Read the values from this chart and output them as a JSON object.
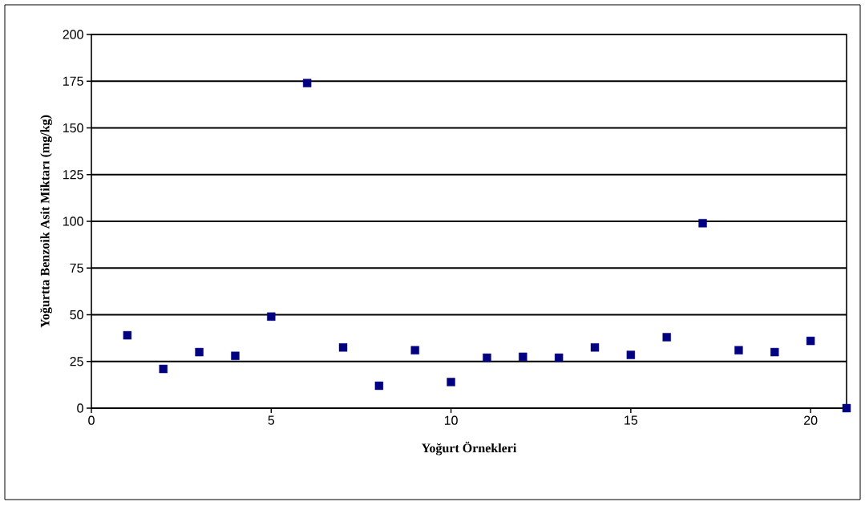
{
  "chart_data": {
    "type": "scatter",
    "xlabel": "Yoğurt Örnekleri",
    "ylabel": "Yoğurtta Benzoik Asit Miktarı (mg/kg)",
    "x": [
      1,
      2,
      3,
      4,
      5,
      6,
      7,
      8,
      9,
      10,
      11,
      12,
      13,
      14,
      15,
      16,
      17,
      18,
      19,
      20,
      21
    ],
    "values": [
      39,
      21,
      30,
      28,
      49,
      174,
      32.5,
      12,
      31,
      14,
      27,
      27.5,
      27,
      32.5,
      28.5,
      38,
      99,
      31,
      30,
      36,
      0
    ],
    "color": "#000080",
    "marker": "square",
    "xlim": [
      0,
      21
    ],
    "ylim": [
      0,
      200
    ],
    "xticks": [
      0,
      5,
      10,
      15,
      20
    ],
    "yticks": [
      0,
      25,
      50,
      75,
      100,
      125,
      150,
      175,
      200
    ],
    "grid": "y"
  }
}
